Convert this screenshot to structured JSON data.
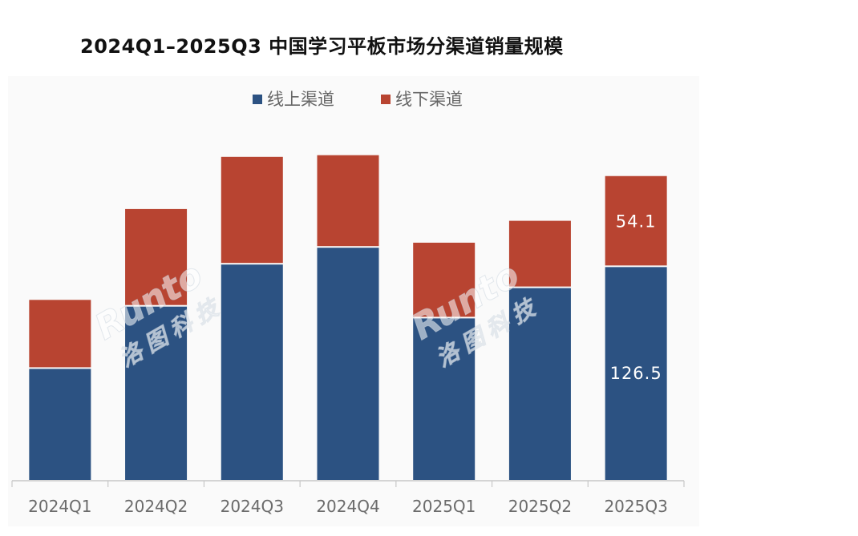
{
  "chart_data": {
    "type": "bar",
    "stacked": true,
    "title": "2024Q1–2025Q3 中国学习平板市场分渠道销量规模",
    "xlabel": "",
    "ylabel": "",
    "ylim": [
      0,
      200
    ],
    "grid": false,
    "legend_position": "top",
    "categories": [
      "2024Q1",
      "2024Q2",
      "2024Q3",
      "2024Q4",
      "2025Q1",
      "2025Q2",
      "2025Q3"
    ],
    "series": [
      {
        "name": "线上渠道",
        "color": "#2c5282",
        "values": [
          66,
          103,
          128,
          138,
          96,
          114,
          126.5
        ]
      },
      {
        "name": "线下渠道",
        "color": "#b84431",
        "values": [
          41,
          58,
          64,
          55,
          45,
          40,
          54.1
        ]
      }
    ],
    "data_labels": [
      {
        "series": 0,
        "index": 6,
        "text": "126.5"
      },
      {
        "series": 1,
        "index": 6,
        "text": "54.1"
      }
    ],
    "watermarks": [
      {
        "brand": "Runto",
        "cn": "洛图科技"
      },
      {
        "brand": "Runto",
        "cn": "洛图科技"
      }
    ]
  }
}
